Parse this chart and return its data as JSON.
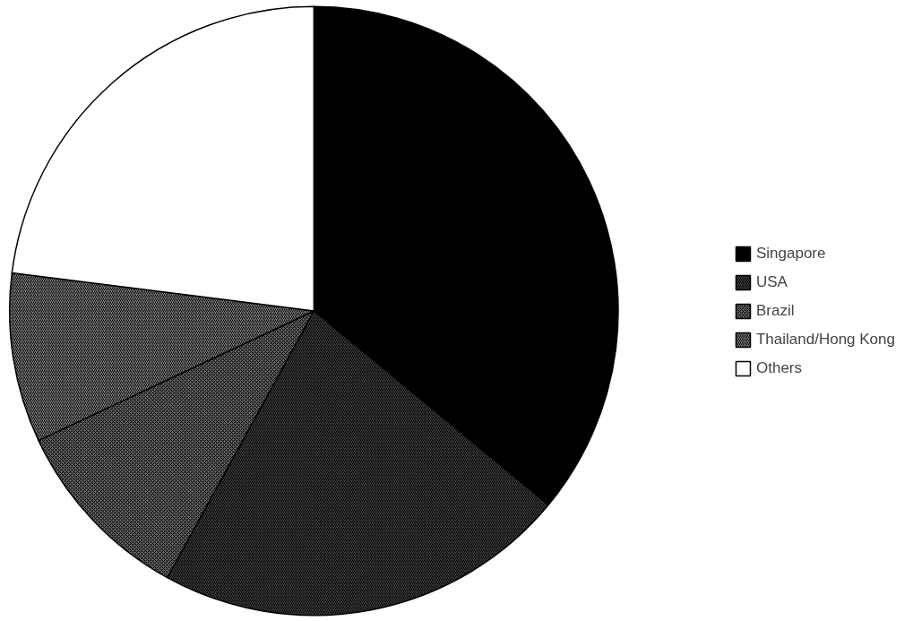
{
  "chart_data": {
    "type": "pie",
    "categories": [
      "Singapore",
      "USA",
      "Brazil",
      "Thailand/Hong Kong",
      "Others"
    ],
    "values": [
      36,
      22,
      10,
      9,
      23
    ],
    "colors": [
      "#000000",
      "#444444",
      "#666666",
      "#888888",
      "#ffffff"
    ],
    "legend": "right"
  }
}
